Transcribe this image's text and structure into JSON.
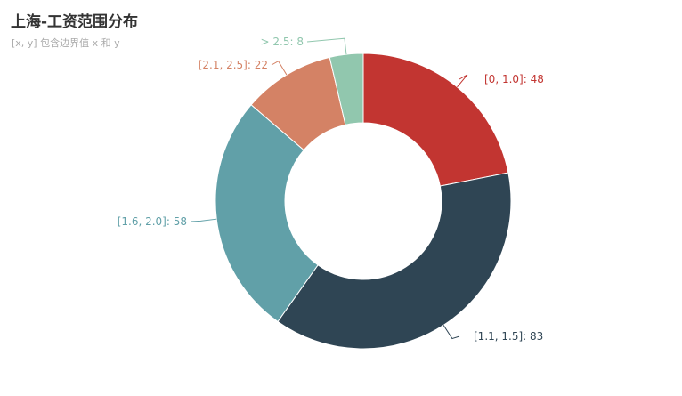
{
  "chart_data": {
    "type": "pie",
    "title": "上海-工资范围分布",
    "subtitle": "[x, y] 包含边界值 x 和 y",
    "donut": true,
    "slices": [
      {
        "name": "[0, 1.0]",
        "value": 48,
        "color": "#c23531",
        "label": "[0, 1.0]: 48"
      },
      {
        "name": "[1.1, 1.5]",
        "value": 83,
        "color": "#2f4554",
        "label": "[1.1, 1.5]: 83"
      },
      {
        "name": "[1.6, 2.0]",
        "value": 58,
        "color": "#61a0a8",
        "label": "[1.6, 2.0]: 58"
      },
      {
        "name": "[2.1, 2.5]",
        "value": 22,
        "color": "#d48265",
        "label": "[2.1, 2.5]: 22"
      },
      {
        "name": "> 2.5",
        "value": 8,
        "color": "#91c7ae",
        "label": "> 2.5: 8"
      }
    ]
  }
}
